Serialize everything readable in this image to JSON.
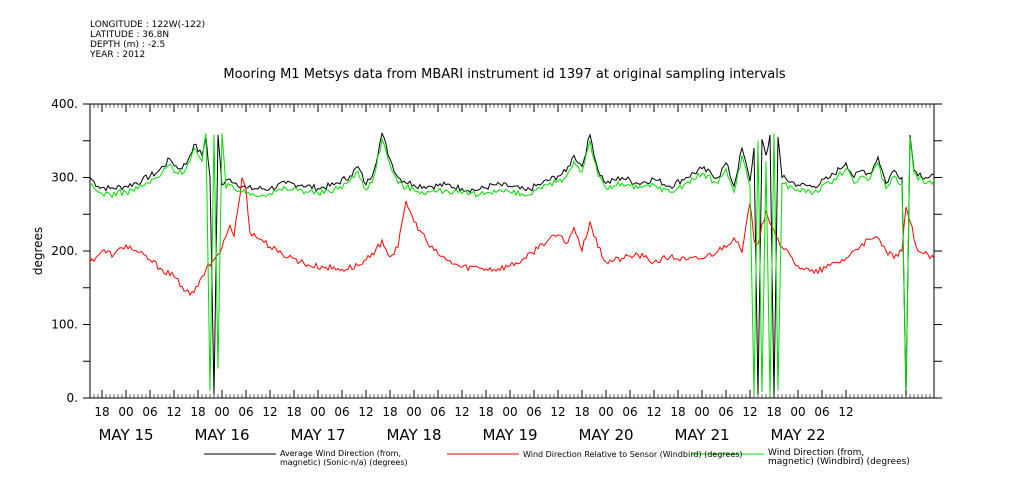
{
  "meta": {
    "longitude": "LONGITUDE : 122W(-122)",
    "latitude": "LATITUDE : 36.8N",
    "depth": "DEPTH (m) : -2.5",
    "year": "YEAR : 2012"
  },
  "chart_data": {
    "type": "line",
    "title": "Mooring M1 Metsys data from MBARI instrument id 1397 at original sampling intervals",
    "ylabel": "degrees",
    "xlabel": "",
    "ylim": [
      0,
      400
    ],
    "y_ticks": [
      "0.",
      "100.",
      "200.",
      "300.",
      "400."
    ],
    "xlim_hours": [
      -9,
      202
    ],
    "hour_ticks": [
      "18",
      "00",
      "06",
      "12",
      "18",
      "00",
      "06",
      "12",
      "18",
      "00",
      "06",
      "12",
      "18",
      "00",
      "06",
      "12",
      "18",
      "00",
      "06",
      "12",
      "18",
      "00",
      "06",
      "12",
      "18",
      "00",
      "06",
      "12",
      "18",
      "00",
      "06",
      "12"
    ],
    "day_ticks": [
      "MAY 15",
      "MAY 16",
      "MAY 17",
      "MAY 18",
      "MAY 19",
      "MAY 20",
      "MAY 21",
      "MAY 22"
    ],
    "series": [
      {
        "name": "Average Wind Direction (from, magnetic) (Sonic-n/a) (degrees)",
        "legend_lines": [
          "Average Wind Direction (from,",
          "magnetic) (Sonic-n/a) (degrees)"
        ],
        "color": "#000000",
        "points": [
          [
            -9,
            300
          ],
          [
            -7,
            288
          ],
          [
            -4,
            285
          ],
          [
            0,
            288
          ],
          [
            4,
            296
          ],
          [
            8,
            308
          ],
          [
            11,
            325
          ],
          [
            13,
            312
          ],
          [
            15,
            318
          ],
          [
            17,
            345
          ],
          [
            19,
            330
          ],
          [
            20,
            355
          ],
          [
            21,
            300
          ],
          [
            22,
            5
          ],
          [
            23,
            358
          ],
          [
            24,
            290
          ],
          [
            26,
            298
          ],
          [
            30,
            285
          ],
          [
            36,
            285
          ],
          [
            40,
            292
          ],
          [
            44,
            290
          ],
          [
            48,
            285
          ],
          [
            52,
            290
          ],
          [
            56,
            302
          ],
          [
            58,
            315
          ],
          [
            60,
            290
          ],
          [
            62,
            310
          ],
          [
            64,
            360
          ],
          [
            66,
            325
          ],
          [
            68,
            300
          ],
          [
            72,
            290
          ],
          [
            76,
            288
          ],
          [
            80,
            290
          ],
          [
            84,
            285
          ],
          [
            88,
            283
          ],
          [
            92,
            290
          ],
          [
            96,
            288
          ],
          [
            100,
            282
          ],
          [
            104,
            292
          ],
          [
            108,
            302
          ],
          [
            110,
            308
          ],
          [
            112,
            330
          ],
          [
            114,
            315
          ],
          [
            116,
            358
          ],
          [
            118,
            310
          ],
          [
            120,
            292
          ],
          [
            124,
            300
          ],
          [
            128,
            292
          ],
          [
            132,
            298
          ],
          [
            136,
            288
          ],
          [
            140,
            300
          ],
          [
            144,
            312
          ],
          [
            148,
            300
          ],
          [
            150,
            320
          ],
          [
            152,
            288
          ],
          [
            154,
            340
          ],
          [
            156,
            295
          ],
          [
            157,
            340
          ],
          [
            158,
            5
          ],
          [
            159,
            352
          ],
          [
            160,
            330
          ],
          [
            161,
            358
          ],
          [
            162,
            3
          ],
          [
            163,
            355
          ],
          [
            164,
            300
          ],
          [
            168,
            290
          ],
          [
            172,
            288
          ],
          [
            176,
            300
          ],
          [
            180,
            320
          ],
          [
            182,
            300
          ],
          [
            184,
            310
          ],
          [
            186,
            305
          ],
          [
            188,
            328
          ],
          [
            190,
            292
          ],
          [
            192,
            310
          ],
          [
            194,
            300
          ],
          [
            195,
            2
          ],
          [
            196,
            358
          ],
          [
            197,
            310
          ],
          [
            200,
            300
          ],
          [
            202,
            304
          ]
        ]
      },
      {
        "name": "Wind Direction Relative to Sensor (Windbird) (degrees)",
        "legend_lines": [
          "Wind Direction Relative to Sensor (Windbird) (degrees)"
        ],
        "color": "#ff0000",
        "points": [
          [
            -9,
            185
          ],
          [
            -6,
            200
          ],
          [
            -3,
            195
          ],
          [
            0,
            208
          ],
          [
            3,
            198
          ],
          [
            6,
            188
          ],
          [
            9,
            175
          ],
          [
            12,
            165
          ],
          [
            14,
            152
          ],
          [
            16,
            140
          ],
          [
            18,
            152
          ],
          [
            20,
            175
          ],
          [
            22,
            188
          ],
          [
            24,
            205
          ],
          [
            26,
            235
          ],
          [
            27,
            220
          ],
          [
            28,
            258
          ],
          [
            29,
            300
          ],
          [
            30,
            285
          ],
          [
            31,
            225
          ],
          [
            34,
            215
          ],
          [
            38,
            198
          ],
          [
            42,
            190
          ],
          [
            46,
            180
          ],
          [
            50,
            178
          ],
          [
            54,
            175
          ],
          [
            58,
            180
          ],
          [
            62,
            195
          ],
          [
            64,
            215
          ],
          [
            66,
            192
          ],
          [
            68,
            205
          ],
          [
            70,
            268
          ],
          [
            72,
            240
          ],
          [
            74,
            225
          ],
          [
            76,
            205
          ],
          [
            80,
            188
          ],
          [
            84,
            178
          ],
          [
            88,
            178
          ],
          [
            92,
            175
          ],
          [
            96,
            180
          ],
          [
            100,
            190
          ],
          [
            104,
            210
          ],
          [
            108,
            222
          ],
          [
            110,
            210
          ],
          [
            112,
            232
          ],
          [
            114,
            200
          ],
          [
            116,
            240
          ],
          [
            118,
            205
          ],
          [
            120,
            185
          ],
          [
            124,
            190
          ],
          [
            128,
            195
          ],
          [
            132,
            185
          ],
          [
            136,
            192
          ],
          [
            140,
            188
          ],
          [
            144,
            190
          ],
          [
            148,
            200
          ],
          [
            152,
            218
          ],
          [
            154,
            198
          ],
          [
            156,
            265
          ],
          [
            157,
            215
          ],
          [
            158,
            210
          ],
          [
            160,
            255
          ],
          [
            162,
            228
          ],
          [
            164,
            205
          ],
          [
            168,
            180
          ],
          [
            172,
            170
          ],
          [
            176,
            180
          ],
          [
            180,
            190
          ],
          [
            184,
            210
          ],
          [
            188,
            218
          ],
          [
            190,
            200
          ],
          [
            192,
            190
          ],
          [
            194,
            200
          ],
          [
            195,
            260
          ],
          [
            196,
            240
          ],
          [
            198,
            200
          ],
          [
            202,
            190
          ]
        ]
      },
      {
        "name": "Wind Direction (from, magnetic) (Windbird) (degrees)",
        "legend_lines": [
          "Wind Direction (from,",
          "magnetic) (Windbird) (degrees)"
        ],
        "color": "#00dd00",
        "points": [
          [
            -9,
            290
          ],
          [
            -7,
            280
          ],
          [
            -4,
            277
          ],
          [
            0,
            280
          ],
          [
            4,
            288
          ],
          [
            8,
            300
          ],
          [
            11,
            318
          ],
          [
            13,
            305
          ],
          [
            15,
            312
          ],
          [
            17,
            340
          ],
          [
            19,
            322
          ],
          [
            20,
            360
          ],
          [
            21,
            10
          ],
          [
            22,
            358
          ],
          [
            23,
            40
          ],
          [
            24,
            360
          ],
          [
            25,
            285
          ],
          [
            26,
            290
          ],
          [
            30,
            278
          ],
          [
            36,
            278
          ],
          [
            40,
            285
          ],
          [
            44,
            283
          ],
          [
            48,
            278
          ],
          [
            52,
            283
          ],
          [
            56,
            295
          ],
          [
            58,
            308
          ],
          [
            60,
            283
          ],
          [
            62,
            302
          ],
          [
            64,
            352
          ],
          [
            66,
            318
          ],
          [
            68,
            292
          ],
          [
            72,
            283
          ],
          [
            76,
            280
          ],
          [
            80,
            283
          ],
          [
            84,
            278
          ],
          [
            88,
            276
          ],
          [
            92,
            283
          ],
          [
            96,
            280
          ],
          [
            100,
            275
          ],
          [
            104,
            285
          ],
          [
            108,
            295
          ],
          [
            110,
            300
          ],
          [
            112,
            322
          ],
          [
            114,
            308
          ],
          [
            116,
            350
          ],
          [
            118,
            302
          ],
          [
            120,
            285
          ],
          [
            124,
            292
          ],
          [
            128,
            285
          ],
          [
            132,
            290
          ],
          [
            136,
            280
          ],
          [
            140,
            292
          ],
          [
            144,
            305
          ],
          [
            148,
            292
          ],
          [
            150,
            312
          ],
          [
            152,
            280
          ],
          [
            154,
            330
          ],
          [
            156,
            288
          ],
          [
            157,
            5
          ],
          [
            158,
            350
          ],
          [
            159,
            8
          ],
          [
            160,
            322
          ],
          [
            161,
            3
          ],
          [
            162,
            360
          ],
          [
            163,
            10
          ],
          [
            164,
            292
          ],
          [
            168,
            283
          ],
          [
            172,
            280
          ],
          [
            176,
            292
          ],
          [
            180,
            312
          ],
          [
            182,
            292
          ],
          [
            184,
            302
          ],
          [
            186,
            298
          ],
          [
            188,
            320
          ],
          [
            190,
            285
          ],
          [
            192,
            302
          ],
          [
            194,
            292
          ],
          [
            195,
            10
          ],
          [
            196,
            355
          ],
          [
            197,
            305
          ],
          [
            200,
            292
          ],
          [
            202,
            296
          ]
        ]
      }
    ]
  }
}
